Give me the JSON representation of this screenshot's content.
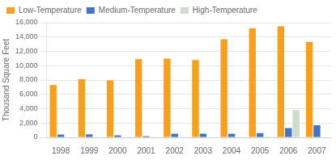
{
  "chart_data": {
    "type": "bar",
    "categories": [
      "1998",
      "1999",
      "2000",
      "2001",
      "2002",
      "2003",
      "2004",
      "2005",
      "2006",
      "2007"
    ],
    "series": [
      {
        "name": "Low-Temperature",
        "color": "#F5A020",
        "values": [
          7300,
          8100,
          7950,
          10900,
          11000,
          10800,
          13700,
          15200,
          15500,
          13300
        ]
      },
      {
        "name": "Medium-Temperature",
        "color": "#4472C4",
        "values": [
          400,
          420,
          280,
          180,
          500,
          500,
          520,
          580,
          1300,
          1700
        ]
      },
      {
        "name": "High-Temperature",
        "color": "#CCDDCC",
        "values": [
          0,
          0,
          0,
          0,
          0,
          0,
          0,
          100,
          3800,
          0
        ]
      }
    ],
    "y_label": "Thousand Square Feet",
    "ylim": [
      0,
      16000
    ],
    "yticks": [
      0,
      {
        "value": 2000,
        "label": "2,000"
      },
      {
        "value": 4000,
        "label": "4,000"
      },
      {
        "value": 6000,
        "label": "6,000"
      },
      {
        "value": 8000,
        "label": "8,000"
      },
      {
        "value": 10000,
        "label": "10,000"
      },
      {
        "value": 12000,
        "label": "12,000"
      },
      {
        "value": 14000,
        "label": "14,000"
      },
      {
        "value": 16000,
        "label": "16,000"
      }
    ],
    "grid": true,
    "legend": "upper left"
  }
}
